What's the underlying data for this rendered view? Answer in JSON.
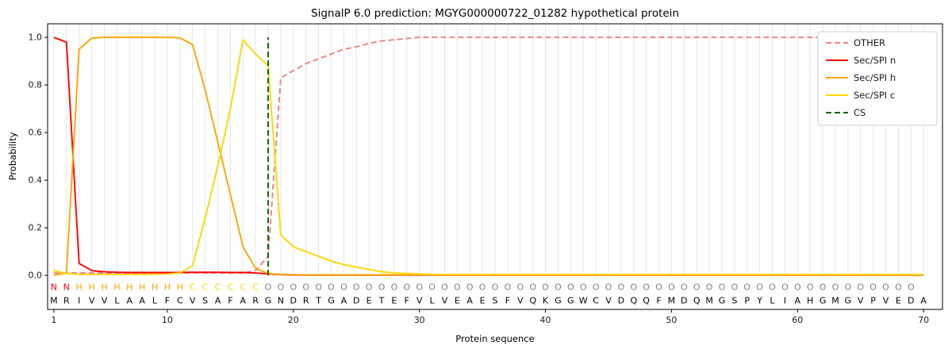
{
  "chart_data": {
    "type": "line",
    "title": "SignalP 6.0 prediction: MGYG000000722_01282 hypothetical protein",
    "xlabel": "Protein sequence",
    "ylabel": "Probability",
    "xlim": [
      0.5,
      71.5
    ],
    "ylim": [
      -0.143,
      1.057
    ],
    "xticks": [
      1,
      10,
      20,
      30,
      40,
      50,
      60,
      70
    ],
    "yticks": [
      0.0,
      0.2,
      0.4,
      0.6,
      0.8,
      1.0
    ],
    "grid": {
      "vertical_line_per_residue": true,
      "color": "#e6e6e6"
    },
    "legend": {
      "position": "upper right",
      "entries": [
        "OTHER",
        "Sec/SPI n",
        "Sec/SPI h",
        "Sec/SPI c",
        "CS"
      ]
    },
    "x": [
      1,
      2,
      3,
      4,
      5,
      6,
      7,
      8,
      9,
      10,
      11,
      12,
      13,
      14,
      15,
      16,
      17,
      18,
      19,
      20,
      21,
      22,
      23,
      24,
      25,
      26,
      27,
      28,
      29,
      30,
      31,
      32,
      33,
      34,
      35,
      36,
      37,
      38,
      39,
      40,
      41,
      42,
      43,
      44,
      45,
      46,
      47,
      48,
      49,
      50,
      51,
      52,
      53,
      54,
      55,
      56,
      57,
      58,
      59,
      60,
      61,
      62,
      63,
      64,
      65,
      66,
      67,
      68,
      69,
      70
    ],
    "series": [
      {
        "name": "OTHER",
        "color": "#f08080",
        "dash": true,
        "values": [
          0.01,
          0.01,
          0.01,
          0.01,
          0.01,
          0.01,
          0.01,
          0.01,
          0.01,
          0.01,
          0.01,
          0.01,
          0.01,
          0.01,
          0.01,
          0.01,
          0.02,
          0.08,
          0.83,
          0.86,
          0.89,
          0.91,
          0.93,
          0.95,
          0.96,
          0.975,
          0.985,
          0.99,
          0.995,
          1.0,
          1.0,
          1.0,
          1.0,
          1.0,
          1.0,
          1.0,
          1.0,
          1.0,
          1.0,
          1.0,
          1.0,
          1.0,
          1.0,
          1.0,
          1.0,
          1.0,
          1.0,
          1.0,
          1.0,
          1.0,
          1.0,
          1.0,
          1.0,
          1.0,
          1.0,
          1.0,
          1.0,
          1.0,
          1.0,
          1.0,
          1.0,
          1.0,
          1.0,
          1.0,
          1.0,
          1.0,
          1.0,
          1.0,
          1.0,
          1.0
        ]
      },
      {
        "name": "Sec/SPI n",
        "color": "#ff0000",
        "dash": false,
        "values": [
          1.0,
          0.98,
          0.05,
          0.02,
          0.015,
          0.013,
          0.012,
          0.012,
          0.012,
          0.012,
          0.012,
          0.013,
          0.013,
          0.013,
          0.012,
          0.012,
          0.01,
          0.006,
          0.003,
          0.002,
          0.001,
          0.001,
          0.001,
          0.001,
          0.001,
          0.001,
          0.001,
          0.001,
          0.001,
          0.001,
          0.001,
          0.001,
          0.001,
          0.001,
          0.001,
          0.001,
          0.001,
          0.001,
          0.001,
          0.001,
          0.001,
          0.001,
          0.001,
          0.001,
          0.001,
          0.001,
          0.001,
          0.001,
          0.001,
          0.001,
          0.001,
          0.001,
          0.001,
          0.001,
          0.001,
          0.001,
          0.001,
          0.001,
          0.001,
          0.001,
          0.001,
          0.001,
          0.001,
          0.001,
          0.001,
          0.001,
          0.001,
          0.001,
          0.001,
          0.001
        ]
      },
      {
        "name": "Sec/SPI h",
        "color": "#ffa500",
        "dash": false,
        "values": [
          0.0,
          0.01,
          0.95,
          0.997,
          1.0,
          1.0,
          1.0,
          1.0,
          1.0,
          1.0,
          0.998,
          0.97,
          0.78,
          0.56,
          0.34,
          0.12,
          0.03,
          0.008,
          0.004,
          0.003,
          0.002,
          0.002,
          0.002,
          0.002,
          0.002,
          0.002,
          0.002,
          0.002,
          0.002,
          0.002,
          0.002,
          0.002,
          0.002,
          0.002,
          0.002,
          0.002,
          0.002,
          0.002,
          0.002,
          0.002,
          0.002,
          0.002,
          0.002,
          0.002,
          0.002,
          0.002,
          0.002,
          0.002,
          0.002,
          0.002,
          0.002,
          0.002,
          0.002,
          0.002,
          0.002,
          0.002,
          0.002,
          0.002,
          0.002,
          0.002,
          0.002,
          0.002,
          0.002,
          0.002,
          0.002,
          0.002,
          0.002,
          0.002,
          0.002,
          0.002
        ]
      },
      {
        "name": "Sec/SPI c",
        "color": "#ffd700",
        "dash": false,
        "values": [
          0.02,
          0.008,
          0.004,
          0.004,
          0.004,
          0.004,
          0.004,
          0.004,
          0.005,
          0.006,
          0.01,
          0.04,
          0.24,
          0.46,
          0.7,
          0.99,
          0.93,
          0.88,
          0.17,
          0.12,
          0.1,
          0.08,
          0.06,
          0.045,
          0.035,
          0.025,
          0.015,
          0.01,
          0.008,
          0.006,
          0.004,
          0.004,
          0.004,
          0.004,
          0.004,
          0.004,
          0.004,
          0.004,
          0.004,
          0.004,
          0.004,
          0.004,
          0.004,
          0.004,
          0.004,
          0.004,
          0.004,
          0.004,
          0.004,
          0.004,
          0.004,
          0.004,
          0.004,
          0.004,
          0.004,
          0.004,
          0.004,
          0.004,
          0.004,
          0.004,
          0.004,
          0.004,
          0.004,
          0.004,
          0.004,
          0.004,
          0.004,
          0.004,
          0.004,
          0.004
        ]
      }
    ],
    "cs": {
      "label": "CS",
      "position": 18,
      "color": "#006400",
      "dash": true
    },
    "sequence": "MRIVVLAALFCVSAFARGNDRTGADETEFVLVEAESFVQKGGWCVDQQFMDQMGSPYLIAHGMGVPVEDA",
    "states": "NNHHHHHHHHHCCCCCCOOOOOOOOOOOOOOOOOOOOOOOOOOOOOOOOOOOOOOOOOOOOOOOOOOOO",
    "state_colors": {
      "N": "#ff0000",
      "H": "#ffa500",
      "C": "#ffd700",
      "O": "#808080"
    },
    "sequence_color": "#000000"
  }
}
